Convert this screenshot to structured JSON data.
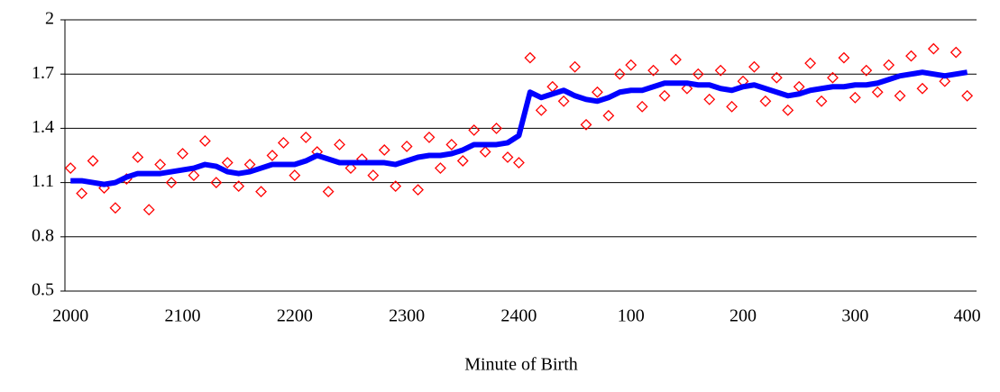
{
  "chart_data": {
    "type": "scatter",
    "x_label": "Minute of Birth",
    "x": [
      0,
      6,
      12,
      18,
      24,
      30,
      36,
      42,
      48,
      54,
      60,
      66,
      72,
      78,
      84,
      90,
      96,
      102,
      108,
      114,
      120,
      126,
      132,
      138,
      144,
      150,
      156,
      162,
      168,
      174,
      180,
      186,
      192,
      198,
      204,
      210,
      216,
      222,
      228,
      234,
      240,
      246,
      252,
      258,
      264,
      270,
      276,
      282,
      288,
      294,
      300,
      306,
      312,
      318,
      324,
      330,
      336,
      342,
      348,
      354,
      360,
      366,
      372,
      378,
      384,
      390,
      396,
      402,
      408,
      414,
      420,
      426,
      432,
      438,
      444,
      450,
      456,
      462,
      468,
      474,
      480
    ],
    "series": [
      {
        "mark": "diamond",
        "color": "#ff0000",
        "values": [
          1.18,
          1.04,
          1.22,
          1.07,
          0.96,
          1.12,
          1.24,
          0.95,
          1.2,
          1.1,
          1.26,
          1.14,
          1.33,
          1.1,
          1.21,
          1.08,
          1.2,
          1.05,
          1.25,
          1.32,
          1.14,
          1.35,
          1.27,
          1.05,
          1.31,
          1.18,
          1.23,
          1.14,
          1.28,
          1.08,
          1.3,
          1.06,
          1.35,
          1.18,
          1.31,
          1.22,
          1.39,
          1.27,
          1.4,
          1.24,
          1.21,
          1.79,
          1.5,
          1.63,
          1.55,
          1.74,
          1.42,
          1.6,
          1.47,
          1.7,
          1.75,
          1.52,
          1.72,
          1.58,
          1.78,
          1.62,
          1.7,
          1.56,
          1.72,
          1.52,
          1.66,
          1.74,
          1.55,
          1.68,
          1.5,
          1.63,
          1.76,
          1.55,
          1.68,
          1.79,
          1.57,
          1.72,
          1.6,
          1.75,
          1.58,
          1.8,
          1.62,
          1.84,
          1.66,
          1.82,
          1.58
        ]
      },
      {
        "mark": "line",
        "color": "#0000ff",
        "values": [
          1.11,
          1.11,
          1.1,
          1.09,
          1.1,
          1.13,
          1.15,
          1.15,
          1.15,
          1.16,
          1.17,
          1.18,
          1.2,
          1.19,
          1.16,
          1.15,
          1.16,
          1.18,
          1.2,
          1.2,
          1.2,
          1.22,
          1.25,
          1.23,
          1.21,
          1.21,
          1.21,
          1.21,
          1.21,
          1.2,
          1.22,
          1.24,
          1.25,
          1.25,
          1.26,
          1.28,
          1.31,
          1.31,
          1.31,
          1.32,
          1.36,
          1.6,
          1.57,
          1.59,
          1.61,
          1.58,
          1.56,
          1.55,
          1.57,
          1.6,
          1.61,
          1.61,
          1.63,
          1.65,
          1.65,
          1.65,
          1.64,
          1.64,
          1.62,
          1.61,
          1.63,
          1.64,
          1.62,
          1.6,
          1.58,
          1.59,
          1.61,
          1.62,
          1.63,
          1.63,
          1.64,
          1.64,
          1.65,
          1.67,
          1.69,
          1.7,
          1.71,
          1.7,
          1.69,
          1.7,
          1.71
        ]
      }
    ],
    "xlim": [
      -3,
      485
    ],
    "xticks": [
      {
        "value": 0,
        "label": "2000"
      },
      {
        "value": 60,
        "label": "2100"
      },
      {
        "value": 120,
        "label": "2200"
      },
      {
        "value": 180,
        "label": "2300"
      },
      {
        "value": 240,
        "label": "2400"
      },
      {
        "value": 300,
        "label": "100"
      },
      {
        "value": 360,
        "label": "200"
      },
      {
        "value": 420,
        "label": "300"
      },
      {
        "value": 480,
        "label": "400"
      }
    ],
    "ylim": [
      0.5,
      2
    ],
    "yticks": [
      0.5,
      0.8,
      1.1,
      1.4,
      1.7,
      2
    ],
    "grid": true
  }
}
